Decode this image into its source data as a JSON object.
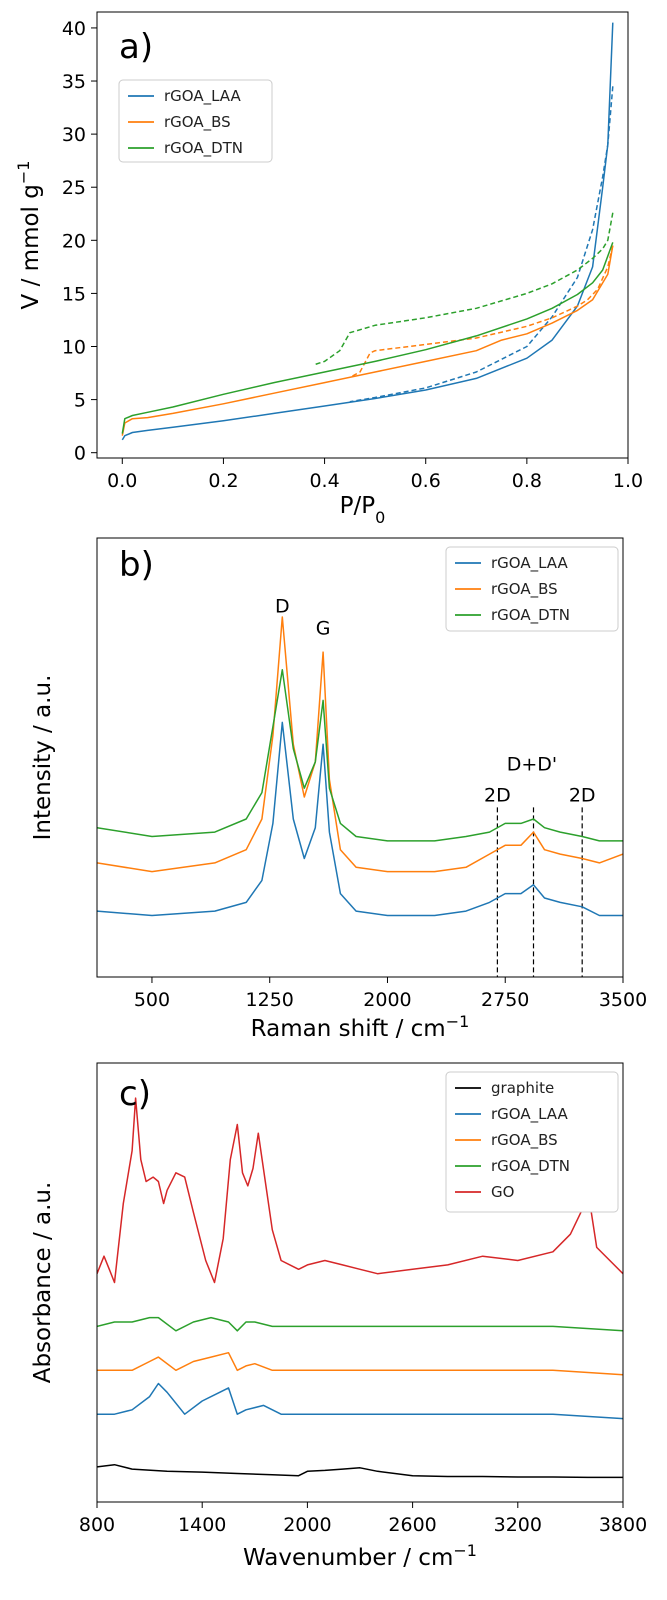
{
  "chart_data": [
    {
      "type": "line",
      "panel_label": "a)",
      "xlabel": "P/P",
      "xlabel_sub": "0",
      "ylabel": "V / mmol g",
      "ylabel_sup": "−1",
      "xlim": [
        -0.05,
        1.0
      ],
      "ylim": [
        -0.5,
        41.5
      ],
      "xticks": [
        0.0,
        0.2,
        0.4,
        0.6,
        0.8,
        1.0
      ],
      "xtick_labels": [
        "0.0",
        "0.2",
        "0.4",
        "0.6",
        "0.8",
        "1.0"
      ],
      "yticks": [
        0,
        5,
        10,
        15,
        20,
        25,
        30,
        35,
        40
      ],
      "ytick_labels": [
        "0",
        "5",
        "10",
        "15",
        "20",
        "25",
        "30",
        "35",
        "40"
      ],
      "legend_position": "upper-left",
      "series": [
        {
          "name": "rGOA_LAA",
          "color": "#1f77b4",
          "style": "solid",
          "x": [
            0.0,
            0.005,
            0.02,
            0.05,
            0.1,
            0.2,
            0.3,
            0.4,
            0.5,
            0.6,
            0.7,
            0.8,
            0.85,
            0.9,
            0.93,
            0.95,
            0.96,
            0.97
          ],
          "y": [
            1.2,
            1.6,
            1.9,
            2.1,
            2.4,
            3.0,
            3.7,
            4.4,
            5.1,
            5.9,
            7.0,
            8.9,
            10.6,
            13.8,
            17.5,
            25.0,
            29.0,
            40.5
          ]
        },
        {
          "name": "",
          "color": "#1f77b4",
          "style": "dashed",
          "x": [
            0.97,
            0.96,
            0.95,
            0.93,
            0.9,
            0.85,
            0.8,
            0.7,
            0.6,
            0.5,
            0.45
          ],
          "y": [
            34.5,
            29.0,
            26.0,
            21.0,
            16.5,
            12.8,
            10.0,
            7.6,
            6.1,
            5.2,
            4.8
          ]
        },
        {
          "name": "rGOA_BS",
          "color": "#ff7f0e",
          "style": "solid",
          "x": [
            0.0,
            0.005,
            0.02,
            0.05,
            0.1,
            0.2,
            0.3,
            0.4,
            0.5,
            0.6,
            0.7,
            0.75,
            0.8,
            0.85,
            0.9,
            0.93,
            0.96,
            0.97
          ],
          "y": [
            1.6,
            2.8,
            3.2,
            3.3,
            3.7,
            4.6,
            5.6,
            6.6,
            7.6,
            8.6,
            9.6,
            10.6,
            11.2,
            12.2,
            13.4,
            14.4,
            16.8,
            19.5
          ]
        },
        {
          "name": "",
          "color": "#ff7f0e",
          "style": "dashed",
          "x": [
            0.97,
            0.96,
            0.94,
            0.92,
            0.9,
            0.85,
            0.8,
            0.7,
            0.6,
            0.5,
            0.49,
            0.47,
            0.45
          ],
          "y": [
            19.5,
            17.5,
            15.4,
            14.4,
            13.8,
            12.7,
            11.9,
            10.8,
            10.2,
            9.6,
            9.4,
            7.6,
            7.1
          ]
        },
        {
          "name": "rGOA_DTN",
          "color": "#2ca02c",
          "style": "solid",
          "x": [
            0.0,
            0.005,
            0.02,
            0.05,
            0.1,
            0.2,
            0.3,
            0.4,
            0.5,
            0.6,
            0.7,
            0.8,
            0.85,
            0.9,
            0.93,
            0.95,
            0.97
          ],
          "y": [
            1.8,
            3.2,
            3.5,
            3.8,
            4.3,
            5.5,
            6.6,
            7.6,
            8.6,
            9.7,
            11.0,
            12.6,
            13.6,
            14.9,
            16.0,
            17.2,
            19.8
          ]
        },
        {
          "name": "",
          "color": "#2ca02c",
          "style": "dashed",
          "x": [
            0.97,
            0.96,
            0.95,
            0.93,
            0.9,
            0.85,
            0.8,
            0.7,
            0.6,
            0.5,
            0.45,
            0.43,
            0.4,
            0.38
          ],
          "y": [
            22.6,
            20.0,
            19.2,
            18.3,
            17.2,
            15.9,
            15.0,
            13.6,
            12.7,
            12.0,
            11.3,
            9.6,
            8.6,
            8.3
          ]
        }
      ]
    },
    {
      "type": "line",
      "panel_label": "b)",
      "xlabel": "Raman shift / cm",
      "xlabel_sup": "−1",
      "ylabel": "Intensity / a.u.",
      "xlim": [
        150,
        3500
      ],
      "ylim": [
        0,
        1
      ],
      "xticks": [
        500,
        1250,
        2000,
        2750,
        3500
      ],
      "xtick_labels": [
        "500",
        "1250",
        "2000",
        "2750",
        "3500"
      ],
      "legend_position": "upper-right",
      "annotations": [
        {
          "text": "D",
          "x": 1330,
          "y": 0.83
        },
        {
          "text": "G",
          "x": 1590,
          "y": 0.78
        },
        {
          "text": "2D",
          "x": 2700,
          "y": 0.4
        },
        {
          "text": "D+D'",
          "x": 2920,
          "y": 0.47
        },
        {
          "text": "2D",
          "x": 3240,
          "y": 0.4
        }
      ],
      "vlines": [
        2700,
        2930,
        3240
      ],
      "series": [
        {
          "name": "rGOA_LAA",
          "color": "#1f77b4",
          "x": [
            150,
            500,
            900,
            1100,
            1200,
            1270,
            1330,
            1400,
            1470,
            1540,
            1590,
            1630,
            1700,
            1800,
            2000,
            2300,
            2500,
            2650,
            2750,
            2850,
            2930,
            3000,
            3100,
            3240,
            3350,
            3500
          ],
          "y": [
            0.15,
            0.14,
            0.15,
            0.17,
            0.22,
            0.35,
            0.58,
            0.36,
            0.27,
            0.34,
            0.53,
            0.33,
            0.19,
            0.15,
            0.14,
            0.14,
            0.15,
            0.17,
            0.19,
            0.19,
            0.21,
            0.18,
            0.17,
            0.16,
            0.14,
            0.14
          ]
        },
        {
          "name": "rGOA_BS",
          "color": "#ff7f0e",
          "x": [
            150,
            500,
            900,
            1100,
            1200,
            1270,
            1330,
            1400,
            1470,
            1540,
            1590,
            1630,
            1700,
            1800,
            2000,
            2300,
            2500,
            2650,
            2750,
            2850,
            2930,
            3000,
            3100,
            3240,
            3350,
            3500
          ],
          "y": [
            0.26,
            0.24,
            0.26,
            0.29,
            0.36,
            0.55,
            0.82,
            0.53,
            0.41,
            0.49,
            0.74,
            0.45,
            0.29,
            0.25,
            0.24,
            0.24,
            0.25,
            0.28,
            0.3,
            0.3,
            0.33,
            0.29,
            0.28,
            0.27,
            0.26,
            0.28
          ]
        },
        {
          "name": "rGOA_DTN",
          "color": "#2ca02c",
          "x": [
            150,
            500,
            900,
            1100,
            1200,
            1270,
            1330,
            1400,
            1470,
            1540,
            1590,
            1630,
            1700,
            1800,
            2000,
            2300,
            2500,
            2650,
            2750,
            2850,
            2930,
            3000,
            3100,
            3240,
            3350,
            3500
          ],
          "y": [
            0.34,
            0.32,
            0.33,
            0.36,
            0.42,
            0.57,
            0.7,
            0.52,
            0.43,
            0.49,
            0.63,
            0.43,
            0.35,
            0.32,
            0.31,
            0.31,
            0.32,
            0.33,
            0.35,
            0.35,
            0.36,
            0.34,
            0.33,
            0.32,
            0.31,
            0.31
          ]
        }
      ]
    },
    {
      "type": "line",
      "panel_label": "c)",
      "xlabel": "Wavenumber / cm",
      "xlabel_sup": "−1",
      "ylabel": "Absorbance / a.u.",
      "xlim": [
        800,
        3800
      ],
      "ylim": [
        0,
        1
      ],
      "xticks": [
        800,
        1400,
        2000,
        2600,
        3200,
        3800
      ],
      "xtick_labels": [
        "800",
        "1400",
        "2000",
        "2600",
        "3200",
        "3800"
      ],
      "legend_position": "upper-right",
      "series": [
        {
          "name": "graphite",
          "color": "#000000",
          "x": [
            800,
            900,
            1000,
            1200,
            1400,
            1600,
            1800,
            1950,
            2000,
            2100,
            2200,
            2300,
            2400,
            2600,
            2800,
            3000,
            3200,
            3400,
            3600,
            3800
          ],
          "y": [
            0.08,
            0.085,
            0.075,
            0.07,
            0.068,
            0.065,
            0.062,
            0.06,
            0.07,
            0.072,
            0.075,
            0.078,
            0.07,
            0.06,
            0.058,
            0.058,
            0.057,
            0.057,
            0.056,
            0.056
          ]
        },
        {
          "name": "rGOA_LAA",
          "color": "#1f77b4",
          "x": [
            800,
            900,
            1000,
            1100,
            1150,
            1200,
            1300,
            1400,
            1500,
            1550,
            1600,
            1650,
            1750,
            1850,
            2000,
            2200,
            2600,
            3000,
            3400,
            3800
          ],
          "y": [
            0.2,
            0.2,
            0.21,
            0.24,
            0.27,
            0.25,
            0.2,
            0.23,
            0.25,
            0.26,
            0.2,
            0.21,
            0.22,
            0.2,
            0.2,
            0.2,
            0.2,
            0.2,
            0.2,
            0.19
          ]
        },
        {
          "name": "rGOA_BS",
          "color": "#ff7f0e",
          "x": [
            800,
            900,
            1000,
            1100,
            1150,
            1250,
            1350,
            1450,
            1550,
            1600,
            1650,
            1700,
            1800,
            2000,
            2200,
            2600,
            3000,
            3400,
            3800
          ],
          "y": [
            0.3,
            0.3,
            0.3,
            0.32,
            0.33,
            0.3,
            0.32,
            0.33,
            0.34,
            0.3,
            0.31,
            0.315,
            0.3,
            0.3,
            0.3,
            0.3,
            0.3,
            0.3,
            0.29
          ]
        },
        {
          "name": "rGOA_DTN",
          "color": "#2ca02c",
          "x": [
            800,
            900,
            1000,
            1100,
            1150,
            1250,
            1350,
            1450,
            1550,
            1600,
            1650,
            1700,
            1800,
            2000,
            2200,
            2600,
            3000,
            3400,
            3800
          ],
          "y": [
            0.4,
            0.41,
            0.41,
            0.42,
            0.42,
            0.39,
            0.41,
            0.42,
            0.41,
            0.39,
            0.41,
            0.41,
            0.4,
            0.4,
            0.4,
            0.4,
            0.4,
            0.4,
            0.39
          ]
        },
        {
          "name": "GO",
          "color": "#d62728",
          "x": [
            800,
            840,
            870,
            900,
            950,
            1000,
            1020,
            1050,
            1080,
            1120,
            1150,
            1180,
            1200,
            1250,
            1300,
            1350,
            1420,
            1470,
            1520,
            1560,
            1600,
            1630,
            1660,
            1690,
            1720,
            1760,
            1800,
            1850,
            1900,
            1950,
            2000,
            2100,
            2200,
            2300,
            2400,
            2600,
            2800,
            3000,
            3200,
            3400,
            3500,
            3560,
            3600,
            3650,
            3800
          ],
          "y": [
            0.52,
            0.56,
            0.53,
            0.5,
            0.68,
            0.8,
            0.92,
            0.78,
            0.73,
            0.74,
            0.73,
            0.68,
            0.71,
            0.75,
            0.74,
            0.66,
            0.55,
            0.5,
            0.6,
            0.78,
            0.86,
            0.75,
            0.72,
            0.76,
            0.84,
            0.73,
            0.62,
            0.55,
            0.54,
            0.53,
            0.54,
            0.55,
            0.54,
            0.53,
            0.52,
            0.53,
            0.54,
            0.56,
            0.55,
            0.57,
            0.61,
            0.66,
            0.71,
            0.58,
            0.52
          ]
        }
      ]
    }
  ]
}
